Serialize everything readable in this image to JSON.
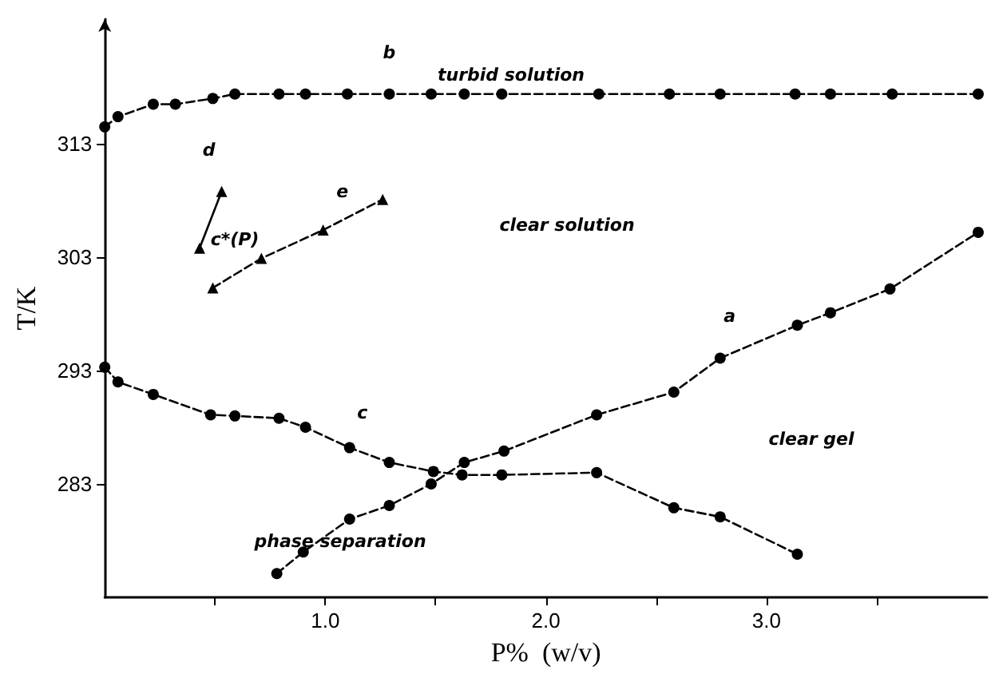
{
  "chart_data": {
    "type": "line",
    "xlabel": "P%  (w/v)",
    "ylabel": "T/K",
    "xlim": [
      0,
      4
    ],
    "ylim": [
      273,
      324
    ],
    "xticks": [
      {
        "value": 0.5,
        "label": null
      },
      {
        "value": 1,
        "label": "1.0"
      },
      {
        "value": 1.5,
        "label": null
      },
      {
        "value": 2,
        "label": "2.0"
      },
      {
        "value": 2.5,
        "label": null
      },
      {
        "value": 3,
        "label": "3.0"
      },
      {
        "value": 3.5,
        "label": null
      }
    ],
    "yticks": [
      283,
      293,
      303,
      313
    ],
    "grid": false,
    "legend": false,
    "series": [
      {
        "name": "a",
        "color": "#000000",
        "marker": "circle",
        "line_style": "dashed",
        "x": [
          0.78,
          0.9,
          1.11,
          1.29,
          1.48,
          1.63,
          1.81,
          2.23,
          2.58,
          2.79,
          3.14,
          3.29,
          3.56,
          3.96
        ],
        "values": [
          275.1,
          277.0,
          279.9,
          281.1,
          283.0,
          284.9,
          285.9,
          289.1,
          291.1,
          294.1,
          297.0,
          298.1,
          300.2,
          305.2
        ]
      },
      {
        "name": "b",
        "color": "#000000",
        "marker": "circle",
        "line_style": "dashed",
        "x": [
          0,
          0.06,
          0.22,
          0.32,
          0.49,
          0.59,
          0.79,
          0.91,
          1.1,
          1.29,
          1.48,
          1.63,
          1.8,
          2.24,
          2.56,
          2.79,
          3.13,
          3.29,
          3.57,
          3.96
        ],
        "values": [
          314.5,
          315.4,
          316.5,
          316.5,
          317.0,
          317.4,
          317.4,
          317.4,
          317.4,
          317.4,
          317.4,
          317.4,
          317.4,
          317.4,
          317.4,
          317.4,
          317.4,
          317.4,
          317.4,
          317.4
        ]
      },
      {
        "name": "c",
        "color": "#000000",
        "marker": "circle",
        "line_style": "dashed",
        "x": [
          0,
          0.06,
          0.22,
          0.48,
          0.59,
          0.79,
          0.91,
          1.11,
          1.29,
          1.49,
          1.62,
          1.8,
          2.23,
          2.58,
          2.79,
          3.14
        ],
        "values": [
          293.3,
          292.0,
          290.9,
          289.1,
          289.0,
          288.8,
          288.0,
          286.2,
          284.9,
          284.1,
          283.8,
          283.8,
          284.0,
          280.9,
          280.1,
          276.8
        ]
      },
      {
        "name": "d",
        "color": "#000000",
        "marker": "triangle",
        "line_style": "solid",
        "x": [
          0.43,
          0.53
        ],
        "values": [
          303.8,
          308.8
        ]
      },
      {
        "name": "e",
        "color": "#000000",
        "marker": "triangle",
        "line_style": "dashed",
        "x": [
          0.49,
          0.71,
          0.99,
          1.26
        ],
        "values": [
          300.3,
          302.9,
          305.4,
          308.1
        ]
      }
    ],
    "annotations": [
      "turbid solution",
      "c*(P)",
      "clear solution",
      "clear gel",
      "phase separation"
    ]
  }
}
